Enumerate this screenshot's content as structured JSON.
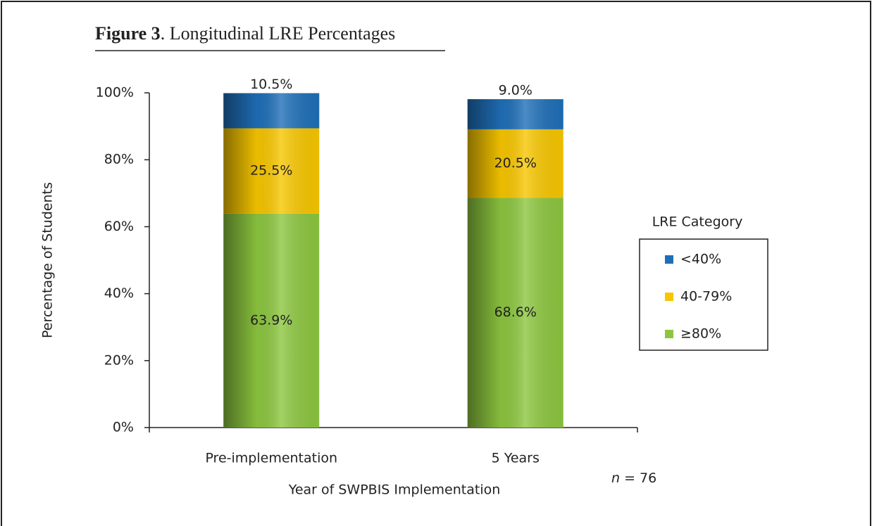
{
  "chart_data": {
    "type": "stacked_bar",
    "title_prefix": "Figure 3",
    "title": ". Longitudinal LRE Percentages",
    "x_label": "Year of SWPBIS Implementation",
    "y_label": "Percentage of Students",
    "annotation": [
      "n",
      " = 76"
    ],
    "legend_title": "LRE Category",
    "legend": "right",
    "categories": [
      "Pre-implementation",
      "5 Years"
    ],
    "series": [
      {
        "name": "≥80%",
        "color": "#8cc63f",
        "values": [
          63.9,
          68.6
        ],
        "value_labels": [
          "63.9%",
          "68.6%"
        ]
      },
      {
        "name": "40-79%",
        "color": "#f7c600",
        "values": [
          25.5,
          20.5
        ],
        "value_labels": [
          "25.5%",
          "20.5%"
        ]
      },
      {
        "name": "<40%",
        "color": "#1f6fb8",
        "values": [
          10.5,
          9.0
        ],
        "value_labels": [
          "10.5%",
          "9.0%"
        ]
      }
    ],
    "ylim": [
      0,
      100
    ],
    "yticks": [
      {
        "value": 0,
        "label": "0%"
      },
      {
        "value": 20,
        "label": "20%"
      },
      {
        "value": 40,
        "label": "40%"
      },
      {
        "value": 60,
        "label": "60%"
      },
      {
        "value": 80,
        "label": "80%"
      },
      {
        "value": 100,
        "label": "100%"
      }
    ]
  }
}
